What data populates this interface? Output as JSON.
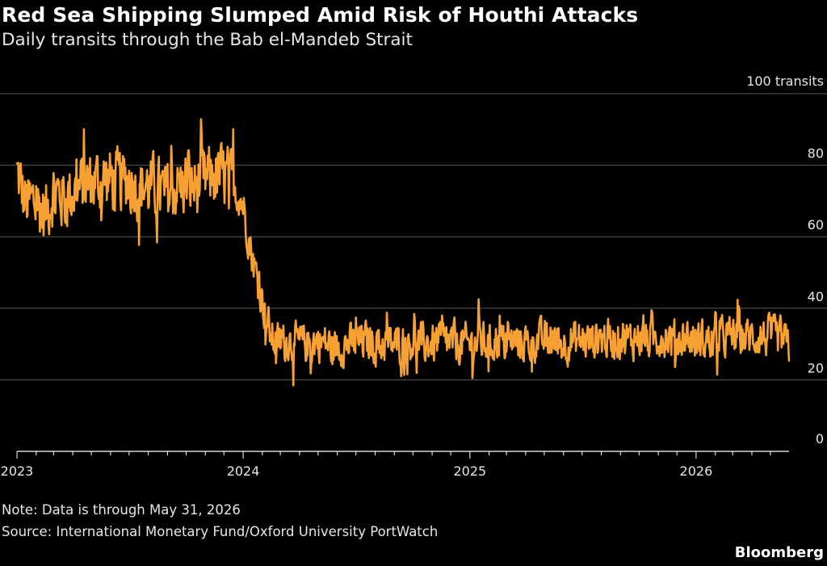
{
  "header": {
    "title": "Red Sea Shipping Slumped Amid Risk of Houthi Attacks",
    "subtitle": "Daily transits through the Bab el-Mandeb Strait"
  },
  "footer": {
    "note": "Note: Data is through May 31, 2026",
    "source": "Source: International Monetary Fund/Oxford University PortWatch",
    "brand": "Bloomberg"
  },
  "colors": {
    "background": "#000000",
    "line": "#f7a033",
    "grid": "#5a5a5a",
    "text": "#e6e6e6"
  },
  "chart_data": {
    "type": "line",
    "title": "Red Sea Shipping Slumped Amid Risk of Houthi Attacks",
    "subtitle": "Daily transits through the Bab el-Mandeb Strait",
    "xlabel": "",
    "ylabel": "",
    "y_unit_label": "100 transits",
    "ylim": [
      0,
      100
    ],
    "xlim": [
      "2023-01-01",
      "2026-05-31"
    ],
    "y_axis_position": "right",
    "grid": "horizontal",
    "y_ticks": [
      {
        "value": 0,
        "label": "0"
      },
      {
        "value": 20,
        "label": "20"
      },
      {
        "value": 40,
        "label": "40"
      },
      {
        "value": 60,
        "label": "60"
      },
      {
        "value": 80,
        "label": "80"
      },
      {
        "value": 100,
        "label": "100 transits"
      }
    ],
    "x_ticks": [
      {
        "value": "2023-01-01",
        "label": "2023"
      },
      {
        "value": "2024-01-01",
        "label": "2024"
      },
      {
        "value": "2025-01-01",
        "label": "2025"
      },
      {
        "value": "2026-01-01",
        "label": "2026"
      }
    ],
    "series": [
      {
        "name": "",
        "granularity": "daily",
        "x": [
          "2023-01-01",
          "2023-01-15",
          "2023-02-01",
          "2023-02-15",
          "2023-03-01",
          "2023-03-15",
          "2023-04-01",
          "2023-04-15",
          "2023-05-01",
          "2023-05-15",
          "2023-06-01",
          "2023-06-15",
          "2023-07-01",
          "2023-07-15",
          "2023-08-01",
          "2023-08-15",
          "2023-09-01",
          "2023-09-15",
          "2023-10-01",
          "2023-10-15",
          "2023-11-01",
          "2023-11-15",
          "2023-12-01",
          "2023-12-15",
          "2024-01-01",
          "2024-01-15",
          "2024-02-01",
          "2024-02-15",
          "2024-03-01",
          "2024-03-15",
          "2024-04-01",
          "2024-04-15",
          "2024-05-01",
          "2024-05-15",
          "2024-06-01",
          "2024-06-15",
          "2024-07-01",
          "2024-07-15",
          "2024-08-01",
          "2024-08-15",
          "2024-09-01",
          "2024-09-15",
          "2024-10-01",
          "2024-10-15",
          "2024-11-01",
          "2024-11-15",
          "2024-12-01",
          "2024-12-15",
          "2025-01-01",
          "2025-01-15",
          "2025-02-01",
          "2025-02-15",
          "2025-03-01",
          "2025-03-15",
          "2025-04-01",
          "2025-04-15",
          "2025-05-01",
          "2025-05-15",
          "2025-06-01",
          "2025-06-15",
          "2025-07-01",
          "2025-07-15",
          "2025-08-01",
          "2025-08-15",
          "2025-09-01",
          "2025-09-15",
          "2025-10-01",
          "2025-10-15",
          "2025-11-01",
          "2025-11-15",
          "2025-12-01",
          "2025-12-15",
          "2026-01-01",
          "2026-01-15",
          "2026-02-01",
          "2026-02-15",
          "2026-03-01",
          "2026-03-15",
          "2026-04-01",
          "2026-04-15",
          "2026-05-01",
          "2026-05-15",
          "2026-05-31"
        ],
        "values": [
          78,
          69,
          70,
          66,
          73,
          71,
          72,
          74,
          75,
          76,
          76,
          75,
          76,
          74,
          74,
          73,
          72,
          74,
          75,
          74,
          76,
          77,
          77,
          75,
          69,
          55,
          42,
          32,
          30,
          31,
          30,
          30,
          31,
          30,
          29,
          30,
          30,
          31,
          30,
          30,
          30,
          30,
          31,
          30,
          30,
          31,
          30,
          30,
          30,
          31,
          30,
          31,
          30,
          31,
          30,
          31,
          31,
          31,
          30,
          31,
          31,
          31,
          32,
          31,
          32,
          31,
          32,
          31,
          32,
          32,
          31,
          32,
          31,
          31,
          31,
          32,
          32,
          32,
          32,
          32,
          32,
          32,
          29
        ],
        "daily_min_approx": [
          51,
          13,
          17,
          18,
          11
        ],
        "daily_max_approx": 99
      }
    ]
  }
}
